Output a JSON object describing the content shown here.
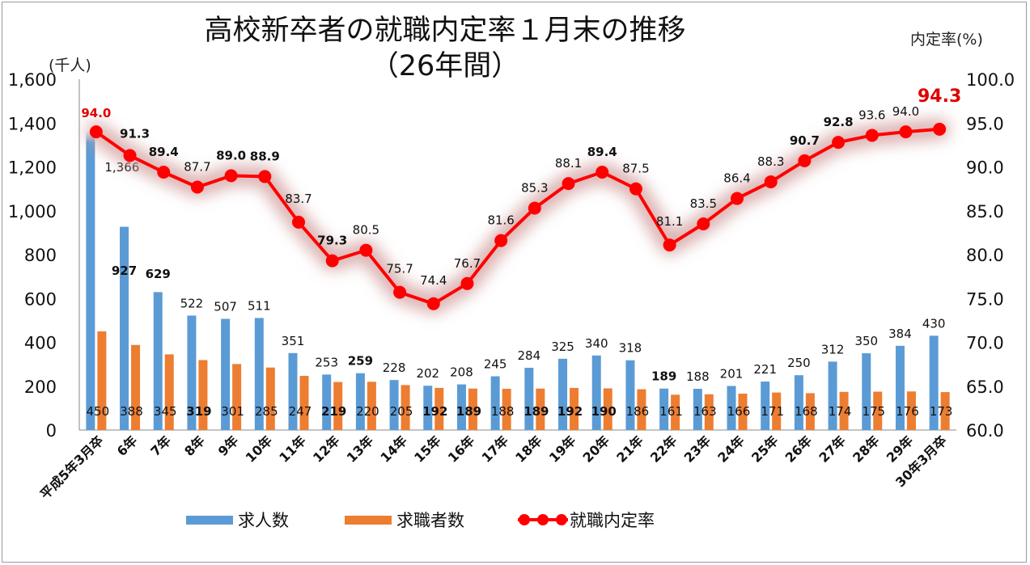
{
  "chart_data": {
    "type": "bar+line",
    "title_lines": [
      "高校新卒者の就職内定率１月末の推移",
      "（26年間）"
    ],
    "y_left_unit": "(千人)",
    "y_right_unit": "内定率(%)",
    "categories": [
      "平成5年3月卒",
      "6年",
      "7年",
      "8年",
      "9年",
      "10年",
      "11年",
      "12年",
      "13年",
      "14年",
      "15年",
      "16年",
      "17年",
      "18年",
      "19年",
      "20年",
      "21年",
      "22年",
      "23年",
      "24年",
      "25年",
      "26年",
      "27年",
      "28年",
      "29年",
      "30年3月卒"
    ],
    "series": [
      {
        "name": "求人数",
        "axis": "left",
        "type": "bar",
        "values": [
          1366,
          927,
          629,
          522,
          507,
          511,
          351,
          253,
          259,
          228,
          202,
          208,
          245,
          284,
          325,
          340,
          318,
          189,
          188,
          201,
          221,
          250,
          312,
          350,
          384,
          430
        ]
      },
      {
        "name": "求職者数",
        "axis": "left",
        "type": "bar",
        "values": [
          450,
          388,
          345,
          319,
          301,
          285,
          247,
          219,
          220,
          205,
          192,
          189,
          188,
          189,
          192,
          190,
          186,
          161,
          163,
          166,
          171,
          168,
          174,
          175,
          176,
          173
        ]
      },
      {
        "name": "就職内定率",
        "axis": "right",
        "type": "line",
        "values": [
          94.0,
          91.3,
          89.4,
          87.7,
          89.0,
          88.9,
          83.7,
          79.3,
          80.5,
          75.7,
          74.4,
          76.7,
          81.6,
          85.3,
          88.1,
          89.4,
          87.5,
          81.1,
          83.5,
          86.4,
          88.3,
          90.7,
          92.8,
          93.6,
          94.0,
          94.3
        ]
      }
    ],
    "y_left_range": [
      0,
      1600
    ],
    "y_left_ticks": [
      "0",
      "200",
      "400",
      "600",
      "800",
      "1,000",
      "1,200",
      "1,400",
      "1,600"
    ],
    "y_right_range": [
      60,
      100
    ],
    "y_right_ticks": [
      "60.0",
      "65.0",
      "70.0",
      "75.0",
      "80.0",
      "85.0",
      "90.0",
      "95.0",
      "100.0"
    ],
    "bar1_labels": [
      "1,366",
      "927",
      "629",
      "522",
      "507",
      "511",
      "351",
      "253",
      "259",
      "228",
      "202",
      "208",
      "245",
      "284",
      "325",
      "340",
      "318",
      "189",
      "188",
      "201",
      "221",
      "250",
      "312",
      "350",
      "384",
      "430"
    ],
    "bar1_bold": [
      1,
      2,
      8,
      17
    ],
    "bar2_labels": [
      "450",
      "388",
      "345",
      "319",
      "301",
      "285",
      "247",
      "219",
      "220",
      "205",
      "192",
      "189",
      "188",
      "189",
      "192",
      "190",
      "186",
      "161",
      "163",
      "166",
      "171",
      "168",
      "174",
      "175",
      "176",
      "173"
    ],
    "bar2_bold": [
      3,
      7,
      10,
      11,
      13,
      14,
      15
    ],
    "line_labels": [
      "94.0",
      "91.3",
      "89.4",
      "87.7",
      "89.0",
      "88.9",
      "83.7",
      "79.3",
      "80.5",
      "75.7",
      "74.4",
      "76.7",
      "81.6",
      "85.3",
      "88.1",
      "89.4",
      "87.5",
      "81.1",
      "83.5",
      "86.4",
      "88.3",
      "90.7",
      "92.8",
      "93.6",
      "94.0",
      "94.3"
    ],
    "line_bold": [
      0,
      1,
      2,
      4,
      5,
      7,
      15,
      21,
      22
    ],
    "line_highlight": [
      0,
      25
    ],
    "grid": false,
    "legend_position": "bottom",
    "colors": {
      "bar1": "#5b9bd5",
      "bar2": "#ed7d31",
      "line": "#ff0000",
      "highlight_text": "#e00000"
    }
  },
  "legend": [
    {
      "label": "求人数",
      "color": "#5b9bd5"
    },
    {
      "label": "求職者数",
      "color": "#ed7d31"
    },
    {
      "label": "就職内定率",
      "color": "#ff0000"
    }
  ]
}
